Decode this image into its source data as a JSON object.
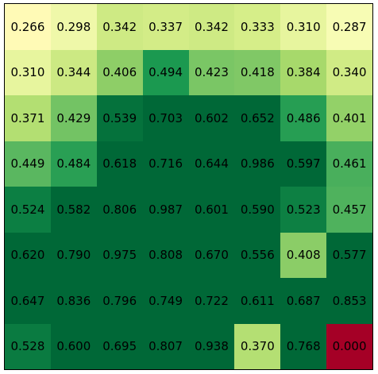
{
  "chart_data": {
    "type": "heatmap",
    "colormap": "RdYlGn",
    "vmin": 0.0,
    "vmax": 0.55,
    "grid": false,
    "rows": [
      [
        "0.266",
        "0.298",
        "0.342",
        "0.337",
        "0.342",
        "0.333",
        "0.310",
        "0.287"
      ],
      [
        "0.310",
        "0.344",
        "0.406",
        "0.494",
        "0.423",
        "0.418",
        "0.384",
        "0.340"
      ],
      [
        "0.371",
        "0.429",
        "0.539",
        "0.703",
        "0.602",
        "0.652",
        "0.486",
        "0.401"
      ],
      [
        "0.449",
        "0.484",
        "0.618",
        "0.716",
        "0.644",
        "0.986",
        "0.597",
        "0.461"
      ],
      [
        "0.524",
        "0.582",
        "0.806",
        "0.987",
        "0.601",
        "0.590",
        "0.523",
        "0.457"
      ],
      [
        "0.620",
        "0.790",
        "0.975",
        "0.808",
        "0.670",
        "0.556",
        "0.408",
        "0.577"
      ],
      [
        "0.647",
        "0.836",
        "0.796",
        "0.749",
        "0.722",
        "0.611",
        "0.687",
        "0.853"
      ],
      [
        "0.528",
        "0.600",
        "0.695",
        "0.807",
        "0.938",
        "0.370",
        "0.768",
        "0.000"
      ]
    ]
  }
}
